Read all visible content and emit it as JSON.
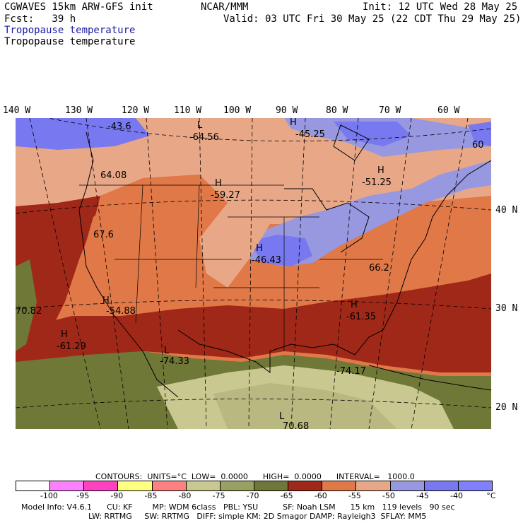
{
  "header": {
    "model": "CGWAVES 15km ARW-GFS init",
    "org": "NCAR/MMM",
    "init": "Init: 12 UTC Wed 28 May 25",
    "fcst": "Fcst:   39 h",
    "valid": "Valid: 03 UTC Fri 30 May 25 (22 CDT Thu 29 May 25)",
    "field_title_1": "Tropopause temperature",
    "field_title_2": "Tropopause temperature"
  },
  "axes": {
    "longitudes": [
      "140 W",
      "130 W",
      "120 W",
      "110 W",
      "100 W",
      "90 W",
      "80 W",
      "70 W",
      "60 W"
    ],
    "latitudes": [
      "40 N",
      "30 N",
      "20 N"
    ]
  },
  "labels": {
    "h_nw": "-43.6",
    "l_north": "L",
    "l_north_val": "-64.56",
    "h_canada": "H",
    "h_canada_val": "-45.25",
    "h_east": "H",
    "h_east_val": "-51.25",
    "ne_val": "60",
    "west_val": "64.08",
    "h_plains": "H",
    "h_plains_val": "-59.27",
    "pac_val": "67.6",
    "h_midwest": "H",
    "h_midwest_val": "-46.43",
    "se_val": "66.2",
    "h_sw": "H",
    "h_sw_val": "-54.88",
    "west_edge_val": "70.82",
    "h_se": "H",
    "h_se_val": "-61.35",
    "h_pac": "H",
    "h_pac_val": "-61.29",
    "l_mex": "L",
    "l_mex_val": "-74.33",
    "gulf_val": "-74.17",
    "l_south": "L",
    "l_south_val": "70.68"
  },
  "contour_info": "CONTOURS:  UNITS=°C  LOW=  0.0000      HIGH=  0.0000      INTERVAL=   1000.0",
  "legend": {
    "colors": [
      "#ffffff",
      "#ff80ff",
      "#ff40c0",
      "#ffff80",
      "#ff8080",
      "#c8c890",
      "#9aa060",
      "#707838",
      "#a02818",
      "#e07848",
      "#e8a888",
      "#9898e0",
      "#7878f0",
      "#8080ff"
    ],
    "ticks": [
      "-100",
      "-95",
      "-90",
      "-85",
      "-80",
      "-75",
      "-70",
      "-65",
      "-60",
      "-55",
      "-50",
      "-45",
      "-40",
      "°C"
    ]
  },
  "model_info": {
    "line1": "Model Info: V4.6.1      CU: KF        MP: WDM 6class   PBL: YSU          SF: Noah LSM      15 km   119 levels   90 sec",
    "line2": "LW: RRTMG     SW: RRTMG   DIFF: simple KM: 2D Smagor DAMP: Rayleigh3  SFLAY: MM5"
  },
  "map_colors": {
    "ocean_cool": "#707838",
    "ocean_cold": "#c8c890",
    "dark_red": "#a02818",
    "orange": "#e07848",
    "salmon": "#e8a888",
    "lavender": "#9898e0",
    "blue": "#7878f0"
  }
}
